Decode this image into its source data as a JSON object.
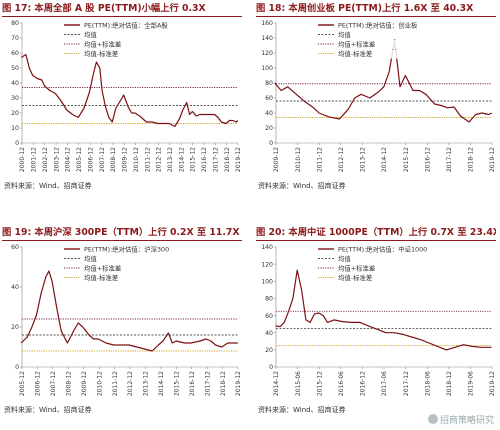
{
  "footer_watermark": "招商策略研究",
  "colors": {
    "series": "#7b1113",
    "mean": "#555555",
    "upper": "#7a2a55",
    "lower": "#c9a227",
    "title": "#8b1a1a"
  },
  "chart_data": [
    {
      "id": "fig17",
      "type": "line",
      "title": "图 17: 本周全部 A 股 PE(TTM)小幅上行 0.3X",
      "source": "资料来源：Wind、招商证券",
      "ylim": [
        0,
        80
      ],
      "yticks": [
        0,
        10,
        20,
        30,
        40,
        50,
        60,
        70,
        80
      ],
      "xticks": [
        "2000-12",
        "2001-12",
        "2002-12",
        "2003-12",
        "2004-12",
        "2005-12",
        "2006-12",
        "2007-12",
        "2008-12",
        "2009-12",
        "2010-12",
        "2011-12",
        "2012-12",
        "2013-12",
        "2014-12",
        "2015-12",
        "2016-12",
        "2017-12",
        "2018-12",
        "2019-12"
      ],
      "legend": [
        "PE(TTM):绝对估值：全部A股",
        "均值",
        "均值+标准差",
        "均值-标准差"
      ],
      "hlines": {
        "mean": 25,
        "upper": 37,
        "lower": 13
      },
      "series": {
        "name": "PE(TTM):绝对估值：全部A股",
        "x": [
          2000.9,
          2001.3,
          2001.6,
          2001.9,
          2002.3,
          2002.7,
          2002.95,
          2003.4,
          2003.9,
          2004.4,
          2004.9,
          2005.4,
          2005.9,
          2006.4,
          2006.9,
          2007.2,
          2007.5,
          2007.8,
          2008.0,
          2008.3,
          2008.6,
          2008.9,
          2009.2,
          2009.6,
          2009.9,
          2010.3,
          2010.6,
          2010.9,
          2011.3,
          2011.6,
          2011.9,
          2012.4,
          2012.9,
          2013.4,
          2013.9,
          2014.4,
          2014.8,
          2015.1,
          2015.45,
          2015.7,
          2015.95,
          2016.3,
          2016.6,
          2016.9,
          2017.4,
          2017.9,
          2018.2,
          2018.5,
          2018.9,
          2019.2,
          2019.5,
          2019.8,
          2019.95
        ],
        "y": [
          57,
          59,
          50,
          45,
          43,
          42,
          38,
          35,
          33,
          28,
          22,
          19,
          17,
          23,
          34,
          45,
          54,
          50,
          35,
          24,
          17,
          14,
          23,
          28,
          32,
          24,
          20,
          20,
          18,
          16,
          14,
          14,
          13,
          13,
          13,
          11,
          16,
          22,
          27,
          19,
          21,
          18,
          19,
          19,
          19,
          19,
          17,
          14,
          13,
          15,
          15,
          14,
          15
        ]
      }
    },
    {
      "id": "fig18",
      "type": "line",
      "title": "图 18: 本周创业板 PE(TTM)上行 1.6X 至 40.3X",
      "source": "资料来源：Wind、招商证券",
      "ylim": [
        0,
        160
      ],
      "yticks": [
        0,
        20,
        40,
        60,
        80,
        100,
        120,
        140,
        160
      ],
      "xticks": [
        "2009-12",
        "2010-12",
        "2011-12",
        "2012-12",
        "2013-12",
        "2014-12",
        "2015-12",
        "2016-12",
        "2017-12",
        "2018-12",
        "2019-12"
      ],
      "legend": [
        "PE(TTM):绝对估值：创业板",
        "均值",
        "均值+标准差",
        "均值-标准差"
      ],
      "hlines": {
        "mean": 56,
        "upper": 79,
        "lower": 34
      },
      "series": {
        "name": "PE(TTM):绝对估值：创业板",
        "x": [
          2009.9,
          2010.2,
          2010.5,
          2010.9,
          2011.3,
          2011.7,
          2011.95,
          2012.4,
          2012.9,
          2013.3,
          2013.6,
          2013.9,
          2014.3,
          2014.7,
          2014.95,
          2015.2,
          2015.45,
          2015.55,
          2015.7,
          2015.95,
          2016.3,
          2016.6,
          2016.9,
          2017.3,
          2017.6,
          2017.9,
          2018.2,
          2018.5,
          2018.9,
          2019.2,
          2019.5,
          2019.8,
          2019.95
        ],
        "y": [
          80,
          70,
          75,
          65,
          55,
          47,
          40,
          35,
          32,
          45,
          60,
          65,
          60,
          68,
          75,
          95,
          138,
          112,
          75,
          90,
          70,
          70,
          65,
          52,
          50,
          47,
          48,
          36,
          28,
          38,
          40,
          38,
          40
        ]
      }
    },
    {
      "id": "fig19",
      "type": "line",
      "title": "图 19: 本周沪深 300PE（TTM）上行 0.2X 至 11.7X",
      "source": "资料来源：Wind、招商证券",
      "ylim": [
        0,
        60
      ],
      "yticks": [
        0,
        20,
        40,
        60
      ],
      "xticks": [
        "2005-12",
        "2006-12",
        "2007-12",
        "2008-12",
        "2009-12",
        "2010-12",
        "2011-12",
        "2012-12",
        "2013-12",
        "2014-12",
        "2015-12",
        "2016-12",
        "2017-12",
        "2018-12",
        "2019-12"
      ],
      "legend": [
        "PE(TTM):绝对估值：沪深300",
        "均值",
        "均值+标准差",
        "均值-标准差"
      ],
      "hlines": {
        "mean": 16,
        "upper": 24,
        "lower": 8
      },
      "series": {
        "name": "PE(TTM):绝对估值：沪深300",
        "x": [
          2005.9,
          2006.3,
          2006.6,
          2006.9,
          2007.2,
          2007.5,
          2007.7,
          2007.9,
          2008.2,
          2008.5,
          2008.9,
          2009.3,
          2009.6,
          2009.9,
          2010.3,
          2010.6,
          2010.9,
          2011.4,
          2011.9,
          2012.4,
          2012.9,
          2013.4,
          2013.9,
          2014.4,
          2014.8,
          2015.1,
          2015.45,
          2015.7,
          2015.95,
          2016.5,
          2016.9,
          2017.5,
          2017.9,
          2018.2,
          2018.5,
          2018.9,
          2019.3,
          2019.6,
          2019.95
        ],
        "y": [
          12,
          15,
          20,
          26,
          37,
          45,
          48,
          43,
          30,
          18,
          12,
          18,
          22,
          20,
          16,
          14,
          14,
          12,
          11,
          11,
          11,
          10,
          9,
          8,
          11,
          13,
          17,
          12,
          13,
          12,
          12,
          13,
          14,
          13,
          11,
          10,
          12,
          12,
          12
        ]
      }
    },
    {
      "id": "fig20",
      "type": "line",
      "title": "图 20: 本周中证 1000PE（TTM）上行 0.7X 至 23.4X",
      "source": "资料来源：Wind、招商证券",
      "ylim": [
        0,
        140
      ],
      "yticks": [
        0,
        20,
        40,
        60,
        80,
        100,
        120,
        140
      ],
      "xticks": [
        "2014-12",
        "2015-06",
        "2015-12",
        "2016-06",
        "2016-12",
        "2017-06",
        "2017-12",
        "2018-06",
        "2018-12",
        "2019-06",
        "2019-12"
      ],
      "legend": [
        "PE(TTM):绝对估值：中证1000",
        "均值",
        "均值+标准差",
        "均值-标准差"
      ],
      "hlines": {
        "mean": 45,
        "upper": 65,
        "lower": 25
      },
      "series": {
        "name": "PE(TTM):绝对估值：中证1000",
        "x": [
          2014.95,
          2015.05,
          2015.15,
          2015.25,
          2015.35,
          2015.45,
          2015.55,
          2015.65,
          2015.75,
          2015.85,
          2015.95,
          2016.05,
          2016.15,
          2016.3,
          2016.5,
          2016.7,
          2016.9,
          2017.1,
          2017.3,
          2017.5,
          2017.7,
          2017.9,
          2018.1,
          2018.3,
          2018.5,
          2018.7,
          2018.9,
          2019.1,
          2019.3,
          2019.5,
          2019.7,
          2019.95
        ],
        "y": [
          48,
          47,
          52,
          65,
          80,
          113,
          90,
          55,
          52,
          62,
          63,
          60,
          52,
          55,
          53,
          52,
          52,
          48,
          44,
          40,
          40,
          38,
          35,
          32,
          28,
          24,
          20,
          23,
          26,
          24,
          23,
          23
        ]
      }
    }
  ]
}
